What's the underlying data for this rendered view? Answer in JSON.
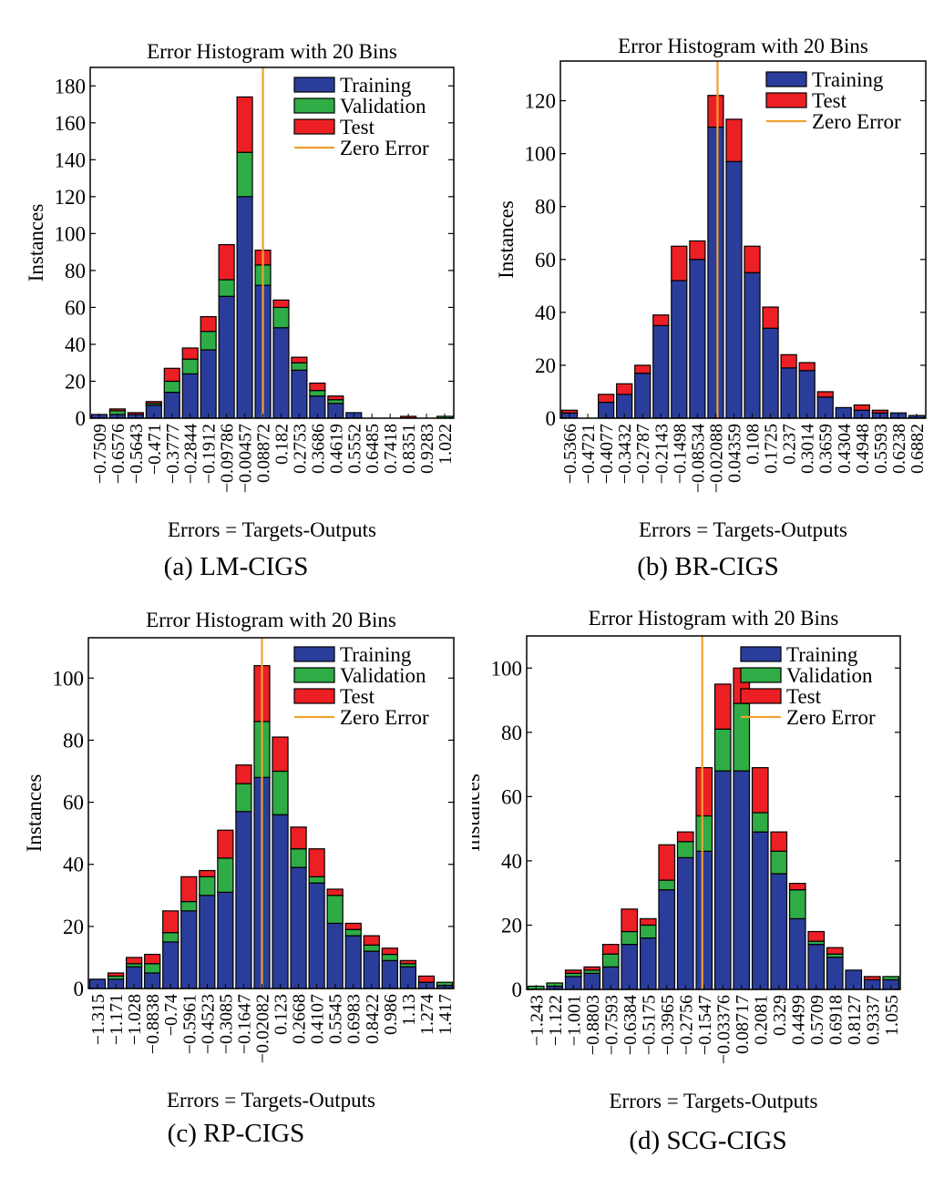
{
  "colors": {
    "training": "#2b3d9a",
    "validation": "#2fac45",
    "test": "#ec1f24",
    "zero_error": "#f0a030"
  },
  "panels": [
    {
      "caption": "(a) LM-CIGS",
      "chart_data": {
        "type": "bar",
        "stacked": true,
        "title": "Error Histogram with 20 Bins",
        "xlabel": "Errors = Targets-Outputs",
        "ylabel": "Instances",
        "ylim": [
          0,
          190
        ],
        "yticks": [
          0,
          20,
          40,
          60,
          80,
          100,
          120,
          140,
          160,
          180
        ],
        "zero_error_bin": 9.5,
        "legend": [
          "Training",
          "Validation",
          "Test",
          "Zero Error"
        ],
        "categories": [
          "−0.7509",
          "−0.6576",
          "−0.5643",
          "−0.471",
          "−0.3777",
          "−0.2844",
          "−0.1912",
          "−0.09786",
          "−0.00457",
          "0.08872",
          "0.182",
          "0.2753",
          "0.3686",
          "0.4619",
          "0.5552",
          "0.6485",
          "0.7418",
          "0.8351",
          "0.9283",
          "1.022"
        ],
        "series": [
          {
            "name": "Training",
            "values": [
              2,
              2,
              2,
              7,
              14,
              24,
              37,
              66,
              120,
              72,
              49,
              26,
              12,
              8,
              3,
              0,
              0,
              0,
              0,
              0
            ]
          },
          {
            "name": "Validation",
            "values": [
              0,
              2,
              0,
              1,
              6,
              8,
              10,
              9,
              24,
              11,
              11,
              4,
              3,
              2,
              0,
              0,
              0,
              0,
              0,
              1
            ]
          },
          {
            "name": "Test",
            "values": [
              0,
              1,
              1,
              1,
              7,
              6,
              8,
              19,
              30,
              8,
              4,
              3,
              4,
              2,
              0,
              0,
              0,
              1,
              0,
              0
            ]
          }
        ]
      }
    },
    {
      "caption": "(b) BR-CIGS",
      "chart_data": {
        "type": "bar",
        "stacked": true,
        "title": "Error Histogram with 20 Bins",
        "xlabel": "Errors = Targets-Outputs",
        "ylabel": "Instances",
        "ylim": [
          0,
          135
        ],
        "yticks": [
          0,
          20,
          40,
          60,
          80,
          100,
          120
        ],
        "zero_error_bin": 8.6,
        "legend": [
          "Training",
          "Test",
          "Zero Error"
        ],
        "categories": [
          "−0.5366",
          "−0.4721",
          "−0.4077",
          "−0.3432",
          "−0.2787",
          "−0.2143",
          "−0.1498",
          "−0.08534",
          "−0.02088",
          "0.04359",
          "0.108",
          "0.1725",
          "0.237",
          "0.3014",
          "0.3659",
          "0.4304",
          "0.4948",
          "0.5593",
          "0.6238",
          "0.6882"
        ],
        "series": [
          {
            "name": "Training",
            "values": [
              2,
              0,
              6,
              9,
              17,
              35,
              52,
              60,
              110,
              97,
              55,
              34,
              19,
              18,
              8,
              4,
              3,
              2,
              2,
              1
            ]
          },
          {
            "name": "Test",
            "values": [
              1,
              0,
              3,
              4,
              3,
              4,
              13,
              7,
              12,
              16,
              10,
              8,
              5,
              3,
              2,
              0,
              2,
              1,
              0,
              0
            ]
          }
        ]
      }
    },
    {
      "caption": "(c) RP-CIGS",
      "chart_data": {
        "type": "bar",
        "stacked": true,
        "title": "Error Histogram with 20 Bins",
        "xlabel": "Errors = Targets-Outputs",
        "ylabel": "Instances",
        "ylim": [
          0,
          113
        ],
        "yticks": [
          0,
          20,
          40,
          60,
          80,
          100
        ],
        "zero_error_bin": 9.5,
        "legend": [
          "Training",
          "Validation",
          "Test",
          "Zero Error"
        ],
        "categories": [
          "−1.315",
          "−1.171",
          "−1.028",
          "−0.8838",
          "−0.74",
          "−0.5961",
          "−0.4523",
          "−0.3085",
          "−0.1647",
          "−0.02082",
          "0.123",
          "0.2668",
          "0.4107",
          "0.5545",
          "0.6983",
          "0.8422",
          "0.986",
          "1.13",
          "1.274",
          "1.417"
        ],
        "series": [
          {
            "name": "Training",
            "values": [
              3,
              3,
              7,
              5,
              15,
              25,
              30,
              31,
              57,
              68,
              56,
              39,
              34,
              21,
              17,
              12,
              9,
              7,
              2,
              1
            ]
          },
          {
            "name": "Validation",
            "values": [
              0,
              1,
              1,
              3,
              3,
              3,
              6,
              11,
              9,
              18,
              14,
              6,
              2,
              9,
              2,
              2,
              2,
              1,
              0,
              1
            ]
          },
          {
            "name": "Test",
            "values": [
              0,
              1,
              2,
              3,
              7,
              8,
              2,
              9,
              6,
              18,
              11,
              7,
              9,
              2,
              2,
              3,
              2,
              1,
              2,
              0
            ]
          }
        ]
      }
    },
    {
      "caption": "(d) SCG-CIGS",
      "chart_data": {
        "type": "bar",
        "stacked": true,
        "title": "Error Histogram with 20 Bins",
        "xlabel": "Errors = Targets-Outputs",
        "ylabel": "Instances",
        "ylim": [
          0,
          110
        ],
        "yticks": [
          0,
          20,
          40,
          60,
          80,
          100
        ],
        "zero_error_bin": 9.4,
        "legend": [
          "Training",
          "Validation",
          "Test",
          "Zero Error"
        ],
        "categories": [
          "−1.243",
          "−1.122",
          "−1.001",
          "−0.8803",
          "−0.7593",
          "−0.6384",
          "−0.5175",
          "−0.3965",
          "−0.2756",
          "−0.1547",
          "−0.03376",
          "0.08717",
          "0.2081",
          "0.329",
          "0.4499",
          "0.5709",
          "0.6918",
          "0.8127",
          "0.9337",
          "1.055"
        ],
        "series": [
          {
            "name": "Training",
            "values": [
              0,
              1,
              4,
              5,
              7,
              14,
              16,
              31,
              41,
              43,
              68,
              68,
              49,
              36,
              22,
              14,
              10,
              6,
              3,
              3
            ]
          },
          {
            "name": "Validation",
            "values": [
              1,
              1,
              1,
              1,
              4,
              4,
              4,
              3,
              5,
              11,
              13,
              21,
              6,
              7,
              9,
              1,
              1,
              0,
              0,
              1
            ]
          },
          {
            "name": "Test",
            "values": [
              0,
              0,
              1,
              1,
              3,
              7,
              2,
              11,
              3,
              15,
              14,
              11,
              14,
              6,
              2,
              3,
              2,
              0,
              1,
              0
            ]
          }
        ]
      }
    }
  ]
}
